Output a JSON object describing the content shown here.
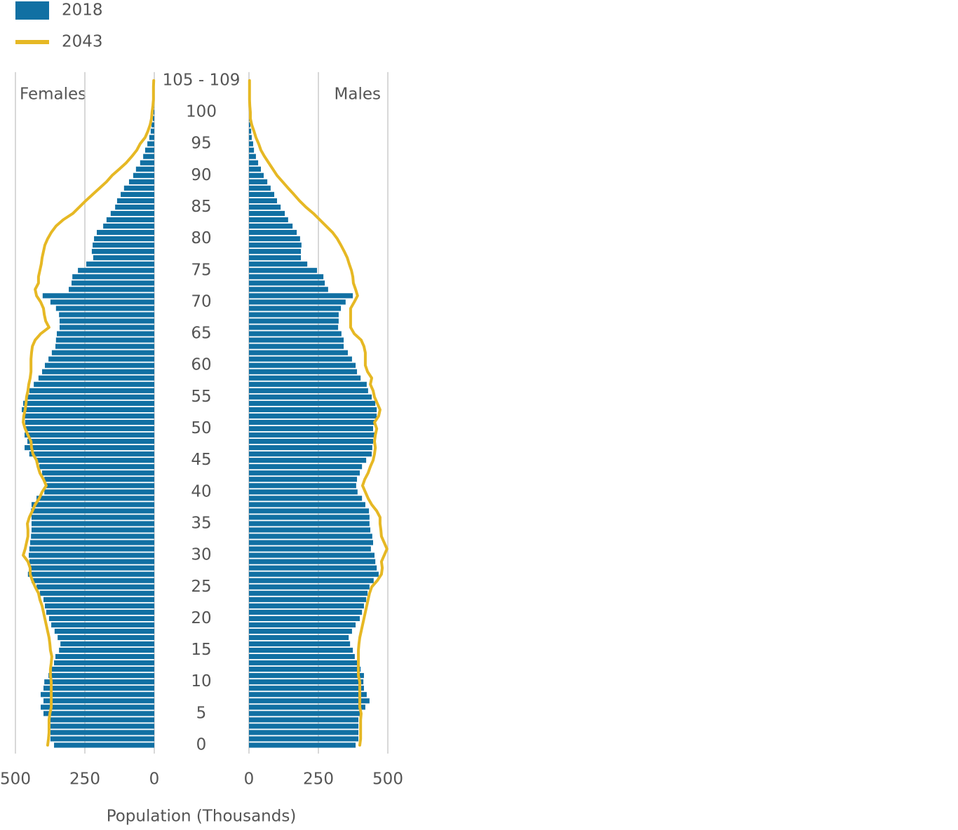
{
  "chart_data": {
    "type": "pyramid",
    "left_label": "Females",
    "right_label": "Males",
    "xlabel": "Population (Thousands)",
    "xlim": [
      0,
      500
    ],
    "xticks": [
      0,
      250,
      500
    ],
    "grid": true,
    "categories": [
      "0",
      null,
      null,
      null,
      null,
      "5",
      null,
      null,
      null,
      null,
      "10",
      null,
      null,
      null,
      null,
      "15",
      null,
      null,
      null,
      null,
      "20",
      null,
      null,
      null,
      null,
      "25",
      null,
      null,
      null,
      null,
      "30",
      null,
      null,
      null,
      null,
      "35",
      null,
      null,
      null,
      null,
      "40",
      null,
      null,
      null,
      null,
      "45",
      null,
      null,
      null,
      null,
      "50",
      null,
      null,
      null,
      null,
      "55",
      null,
      null,
      null,
      null,
      "60",
      null,
      null,
      null,
      null,
      "65",
      null,
      null,
      null,
      null,
      "70",
      null,
      null,
      null,
      null,
      "75",
      null,
      null,
      null,
      null,
      "80",
      null,
      null,
      null,
      null,
      "85",
      null,
      null,
      null,
      null,
      "90",
      null,
      null,
      null,
      null,
      "95",
      null,
      null,
      null,
      null,
      "100",
      null,
      null,
      null,
      null,
      "105 - 109"
    ],
    "series": [
      {
        "name": "2018",
        "color": "#1170a3",
        "style": "bar",
        "left": [
          361,
          374,
          374,
          374,
          374,
          399,
          409,
          399,
          409,
          399,
          396,
          381,
          369,
          361,
          356,
          343,
          338,
          348,
          359,
          371,
          379,
          389,
          394,
          399,
          412,
          424,
          442,
          455,
          447,
          450,
          452,
          450,
          447,
          444,
          442,
          442,
          442,
          444,
          442,
          424,
          396,
          389,
          396,
          404,
          414,
          427,
          450,
          467,
          457,
          467,
          462,
          465,
          472,
          477,
          472,
          460,
          450,
          434,
          417,
          404,
          394,
          381,
          369,
          356,
          354,
          351,
          341,
          341,
          343,
          354,
          374,
          402,
          308,
          298,
          295,
          275,
          245,
          220,
          225,
          222,
          217,
          207,
          184,
          172,
          157,
          141,
          134,
          121,
          109,
          91,
          76,
          66,
          51,
          40,
          33,
          25,
          18,
          13,
          10,
          5,
          3,
          1,
          0,
          0,
          0,
          0
        ],
        "right": [
          384,
          394,
          394,
          394,
          394,
          404,
          419,
          434,
          424,
          414,
          412,
          414,
          402,
          394,
          381,
          374,
          364,
          359,
          371,
          384,
          399,
          407,
          414,
          422,
          427,
          434,
          449,
          467,
          460,
          455,
          452,
          439,
          447,
          444,
          437,
          434,
          434,
          432,
          419,
          407,
          391,
          386,
          389,
          399,
          407,
          422,
          442,
          444,
          447,
          452,
          447,
          455,
          460,
          460,
          455,
          442,
          429,
          424,
          402,
          389,
          384,
          371,
          356,
          341,
          341,
          333,
          321,
          323,
          323,
          331,
          348,
          374,
          285,
          273,
          268,
          245,
          210,
          187,
          187,
          189,
          184,
          172,
          157,
          141,
          129,
          114,
          101,
          91,
          78,
          66,
          53,
          43,
          33,
          25,
          18,
          15,
          10,
          8,
          5,
          3,
          1,
          0,
          0,
          0,
          0,
          0
        ]
      },
      {
        "name": "2043",
        "color": "#e6b824",
        "style": "line",
        "left": [
          384,
          381,
          379,
          379,
          379,
          376,
          371,
          371,
          371,
          371,
          371,
          374,
          374,
          371,
          369,
          374,
          376,
          379,
          384,
          389,
          394,
          399,
          404,
          412,
          417,
          429,
          439,
          447,
          447,
          455,
          472,
          465,
          460,
          455,
          455,
          457,
          450,
          439,
          429,
          414,
          404,
          389,
          399,
          412,
          419,
          424,
          437,
          442,
          444,
          455,
          465,
          472,
          470,
          465,
          462,
          460,
          455,
          452,
          447,
          444,
          444,
          444,
          442,
          439,
          429,
          409,
          379,
          391,
          396,
          399,
          409,
          424,
          429,
          417,
          417,
          412,
          407,
          404,
          399,
          394,
          384,
          371,
          354,
          328,
          293,
          270,
          247,
          222,
          197,
          172,
          152,
          126,
          101,
          81,
          63,
          51,
          33,
          23,
          15,
          10,
          8,
          5,
          3,
          3,
          3,
          2
        ],
        "right": [
          399,
          402,
          402,
          402,
          402,
          404,
          399,
          399,
          399,
          399,
          399,
          394,
          394,
          394,
          394,
          394,
          396,
          399,
          404,
          409,
          414,
          419,
          424,
          429,
          434,
          442,
          462,
          477,
          480,
          477,
          487,
          497,
          487,
          477,
          475,
          472,
          472,
          460,
          442,
          429,
          419,
          409,
          417,
          429,
          437,
          447,
          452,
          455,
          452,
          455,
          460,
          452,
          467,
          472,
          462,
          452,
          447,
          437,
          442,
          427,
          419,
          419,
          419,
          414,
          404,
          379,
          366,
          366,
          366,
          366,
          379,
          391,
          384,
          376,
          374,
          369,
          361,
          354,
          343,
          331,
          318,
          301,
          278,
          255,
          232,
          205,
          182,
          162,
          141,
          121,
          101,
          86,
          71,
          56,
          43,
          35,
          25,
          18,
          10,
          5,
          5,
          3,
          2,
          2,
          2,
          2
        ]
      }
    ]
  }
}
